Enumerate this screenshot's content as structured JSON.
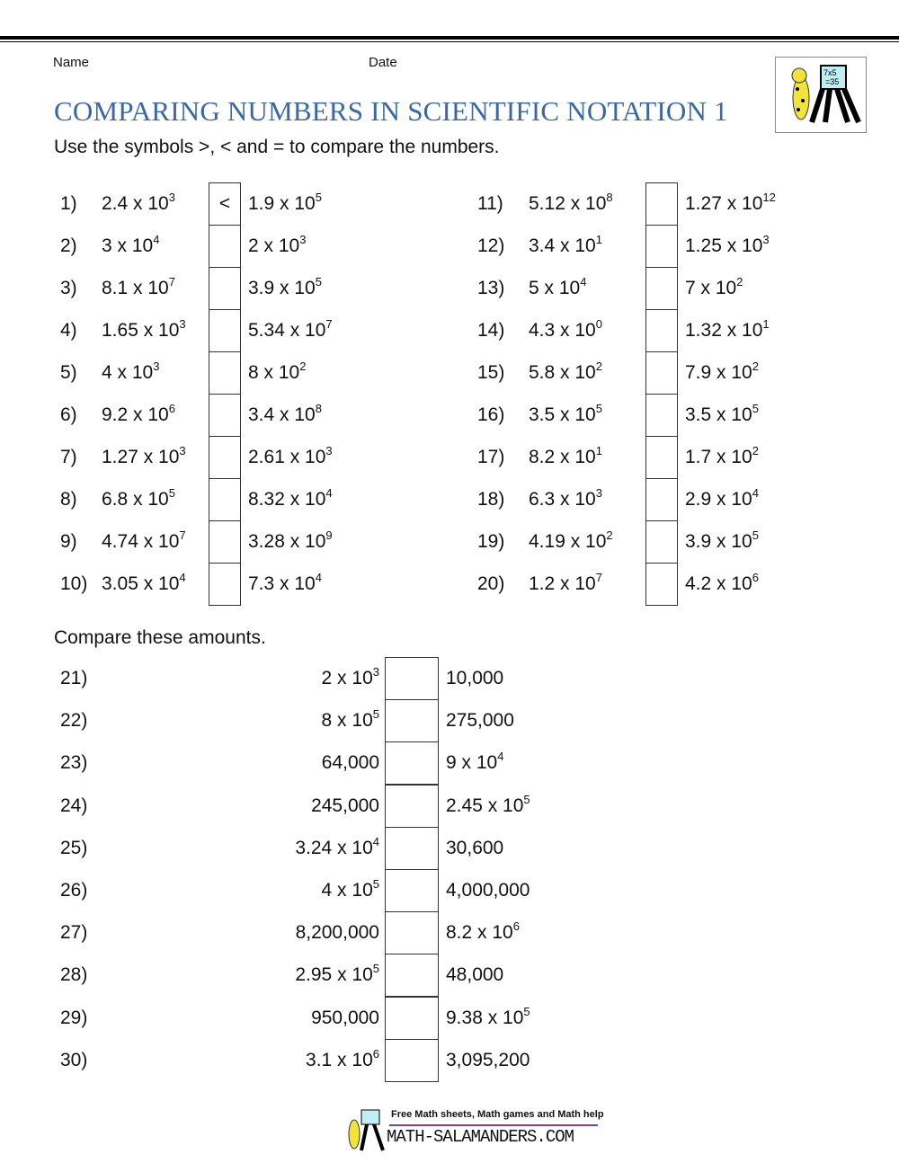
{
  "header": {
    "name_label": "Name",
    "date_label": "Date",
    "title": "COMPARING NUMBERS IN SCIENTIFIC NOTATION 1",
    "instruction": "Use the symbols >, < and = to compare the numbers.",
    "logo_text": "7x5 =35"
  },
  "part1": [
    {
      "n": "1)",
      "a": "2.4 x 10",
      "ae": "3",
      "b": "1.9 x 10",
      "be": "5",
      "ans": "<"
    },
    {
      "n": "2)",
      "a": "3 x 10",
      "ae": "4",
      "b": "2 x 10",
      "be": "3",
      "ans": ""
    },
    {
      "n": "3)",
      "a": "8.1 x 10",
      "ae": "7",
      "b": "3.9 x 10",
      "be": "5",
      "ans": ""
    },
    {
      "n": "4)",
      "a": "1.65 x 10",
      "ae": "3",
      "b": "5.34 x 10",
      "be": "7",
      "ans": ""
    },
    {
      "n": "5)",
      "a": "4 x 10",
      "ae": "3",
      "b": "8 x 10",
      "be": "2",
      "ans": ""
    },
    {
      "n": "6)",
      "a": "9.2 x 10",
      "ae": "6",
      "b": "3.4 x 10",
      "be": "8",
      "ans": ""
    },
    {
      "n": "7)",
      "a": "1.27 x 10",
      "ae": "3",
      "b": "2.61 x 10",
      "be": "3",
      "ans": ""
    },
    {
      "n": "8)",
      "a": "6.8 x 10",
      "ae": "5",
      "b": "8.32 x 10",
      "be": "4",
      "ans": ""
    },
    {
      "n": "9)",
      "a": "4.74 x 10",
      "ae": "7",
      "b": "3.28 x 10",
      "be": "9",
      "ans": ""
    },
    {
      "n": "10)",
      "a": "3.05 x 10",
      "ae": "4",
      "b": "7.3 x 10",
      "be": "4",
      "ans": ""
    },
    {
      "n": "11)",
      "a": "5.12 x 10",
      "ae": "8",
      "b": "1.27 x 10",
      "be": "12",
      "ans": ""
    },
    {
      "n": "12)",
      "a": "3.4 x 10",
      "ae": "1",
      "b": "1.25 x 10",
      "be": "3",
      "ans": ""
    },
    {
      "n": "13)",
      "a": "5 x 10",
      "ae": "4",
      "b": "7 x 10",
      "be": "2",
      "ans": ""
    },
    {
      "n": "14)",
      "a": "4.3 x 10",
      "ae": "0",
      "b": "1.32 x 10",
      "be": "1",
      "ans": ""
    },
    {
      "n": "15)",
      "a": "5.8 x 10",
      "ae": "2",
      "b": "7.9 x 10",
      "be": "2",
      "ans": ""
    },
    {
      "n": "16)",
      "a": "3.5 x 10",
      "ae": "5",
      "b": "3.5 x 10",
      "be": "5",
      "ans": ""
    },
    {
      "n": "17)",
      "a": "8.2 x 10",
      "ae": "1",
      "b": "1.7 x 10",
      "be": "2",
      "ans": ""
    },
    {
      "n": "18)",
      "a": "6.3 x 10",
      "ae": "3",
      "b": "2.9 x 10",
      "be": "4",
      "ans": ""
    },
    {
      "n": "19)",
      "a": "4.19 x 10",
      "ae": "2",
      "b": "3.9 x 10",
      "be": "5",
      "ans": ""
    },
    {
      "n": "20)",
      "a": "1.2 x 10",
      "ae": "7",
      "b": "4.2 x 10",
      "be": "6",
      "ans": ""
    }
  ],
  "part2_heading": "Compare these amounts.",
  "part2": [
    {
      "n": "21)",
      "a": "2 x 10",
      "ae": "3",
      "b": "10,000",
      "be": ""
    },
    {
      "n": "22)",
      "a": "8 x 10",
      "ae": "5",
      "b": "275,000",
      "be": ""
    },
    {
      "n": "23)",
      "a": "64,000",
      "ae": "",
      "b": "9 x 10",
      "be": "4"
    },
    {
      "n": "24)",
      "a": "245,000",
      "ae": "",
      "b": "2.45 x 10",
      "be": "5"
    },
    {
      "n": "25)",
      "a": "3.24 x 10",
      "ae": "4",
      "b": "30,600",
      "be": ""
    },
    {
      "n": "26)",
      "a": "4 x 10",
      "ae": "5",
      "b": "4,000,000",
      "be": ""
    },
    {
      "n": "27)",
      "a": "8,200,000",
      "ae": "",
      "b": "8.2 x 10",
      "be": "6"
    },
    {
      "n": "28)",
      "a": "2.95 x 10",
      "ae": "5",
      "b": "48,000",
      "be": ""
    },
    {
      "n": "29)",
      "a": "950,000",
      "ae": "",
      "b": "9.38 x 10",
      "be": "5"
    },
    {
      "n": "30)",
      "a": "3.1 x 10",
      "ae": "6",
      "b": "3,095,200",
      "be": ""
    }
  ],
  "footer": {
    "tagline": "Free Math sheets, Math games and Math help",
    "site": "MATH-SALAMANDERS.COM"
  },
  "colors": {
    "title": "#3a68a3",
    "footer_rule": "#7a3fb0"
  }
}
